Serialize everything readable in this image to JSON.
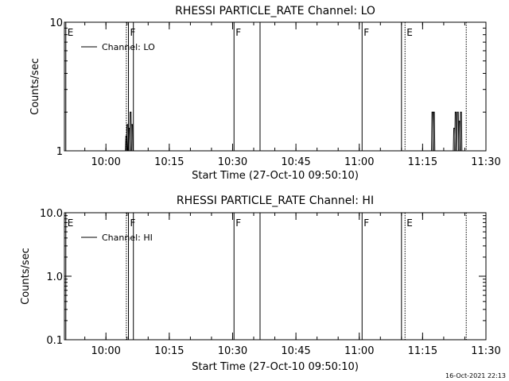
{
  "footer": {
    "timestamp": "16-Oct-2021 22:13"
  },
  "chart_data": [
    {
      "type": "line",
      "title": "RHESSI PARTICLE_RATE Channel: LO",
      "xlabel": "Start Time (27-Oct-10 09:50:10)",
      "ylabel": "Counts/sec",
      "yscale": "log",
      "ylim": [
        1,
        10
      ],
      "y_ticks": [
        {
          "value": 1,
          "label": "1"
        },
        {
          "value": 10,
          "label": "10"
        }
      ],
      "xlim": [
        "09:50:10",
        "11:30"
      ],
      "x_ticks": [
        "10:00",
        "10:15",
        "10:30",
        "10:45",
        "11:00",
        "11:15",
        "11:30"
      ],
      "legend": {
        "label": "Channel: LO",
        "placement": "top-left"
      },
      "series": [
        {
          "name": "Channel: LO",
          "spikes": [
            {
              "time": "10:04:50",
              "value": 1.3
            },
            {
              "time": "10:05:05",
              "value": 1.6
            },
            {
              "time": "10:05:25",
              "value": 1.5
            },
            {
              "time": "10:05:50",
              "value": 2.0
            },
            {
              "time": "10:06:10",
              "value": 1.6
            },
            {
              "time": "11:17:20",
              "value": 2.0
            },
            {
              "time": "11:17:40",
              "value": 2.0
            },
            {
              "time": "11:22:30",
              "value": 1.5
            },
            {
              "time": "11:22:50",
              "value": 2.0
            },
            {
              "time": "11:23:20",
              "value": 2.0
            },
            {
              "time": "11:23:45",
              "value": 1.7
            },
            {
              "time": "11:24:05",
              "value": 2.0
            }
          ]
        }
      ],
      "flag_lines": [
        {
          "time": "09:50:30",
          "label": "E",
          "style": "solid"
        },
        {
          "time": "10:04:50",
          "label": "",
          "style": "dotted"
        },
        {
          "time": "10:05:20",
          "label": "F",
          "style": "solid"
        },
        {
          "time": "10:06:30",
          "label": "",
          "style": "solid"
        },
        {
          "time": "10:30:20",
          "label": "F",
          "style": "solid"
        },
        {
          "time": "10:36:30",
          "label": "",
          "style": "solid"
        },
        {
          "time": "11:00:40",
          "label": "F",
          "style": "solid"
        },
        {
          "time": "11:10:00",
          "label": "",
          "style": "solid"
        },
        {
          "time": "11:10:50",
          "label": "E",
          "style": "dotted"
        },
        {
          "time": "11:25:20",
          "label": "",
          "style": "dotted"
        }
      ]
    },
    {
      "type": "line",
      "title": "RHESSI PARTICLE_RATE Channel: HI",
      "xlabel": "Start Time (27-Oct-10 09:50:10)",
      "ylabel": "Counts/sec",
      "yscale": "log",
      "ylim": [
        0.1,
        10
      ],
      "y_ticks": [
        {
          "value": 0.1,
          "label": "0.1"
        },
        {
          "value": 1,
          "label": "1.0"
        },
        {
          "value": 10,
          "label": "10.0"
        }
      ],
      "xlim": [
        "09:50:10",
        "11:30"
      ],
      "x_ticks": [
        "10:00",
        "10:15",
        "10:30",
        "10:45",
        "11:00",
        "11:15",
        "11:30"
      ],
      "legend": {
        "label": "Channel: HI",
        "placement": "top-left"
      },
      "series": [
        {
          "name": "Channel: HI",
          "spikes": []
        }
      ],
      "flag_lines": [
        {
          "time": "09:50:30",
          "label": "E",
          "style": "solid"
        },
        {
          "time": "10:04:50",
          "label": "",
          "style": "dotted"
        },
        {
          "time": "10:05:20",
          "label": "F",
          "style": "solid"
        },
        {
          "time": "10:06:30",
          "label": "",
          "style": "solid"
        },
        {
          "time": "10:30:20",
          "label": "F",
          "style": "solid"
        },
        {
          "time": "10:36:30",
          "label": "",
          "style": "solid"
        },
        {
          "time": "11:00:40",
          "label": "F",
          "style": "solid"
        },
        {
          "time": "11:10:00",
          "label": "",
          "style": "solid"
        },
        {
          "time": "11:10:50",
          "label": "E",
          "style": "dotted"
        },
        {
          "time": "11:25:20",
          "label": "",
          "style": "dotted"
        }
      ]
    }
  ]
}
